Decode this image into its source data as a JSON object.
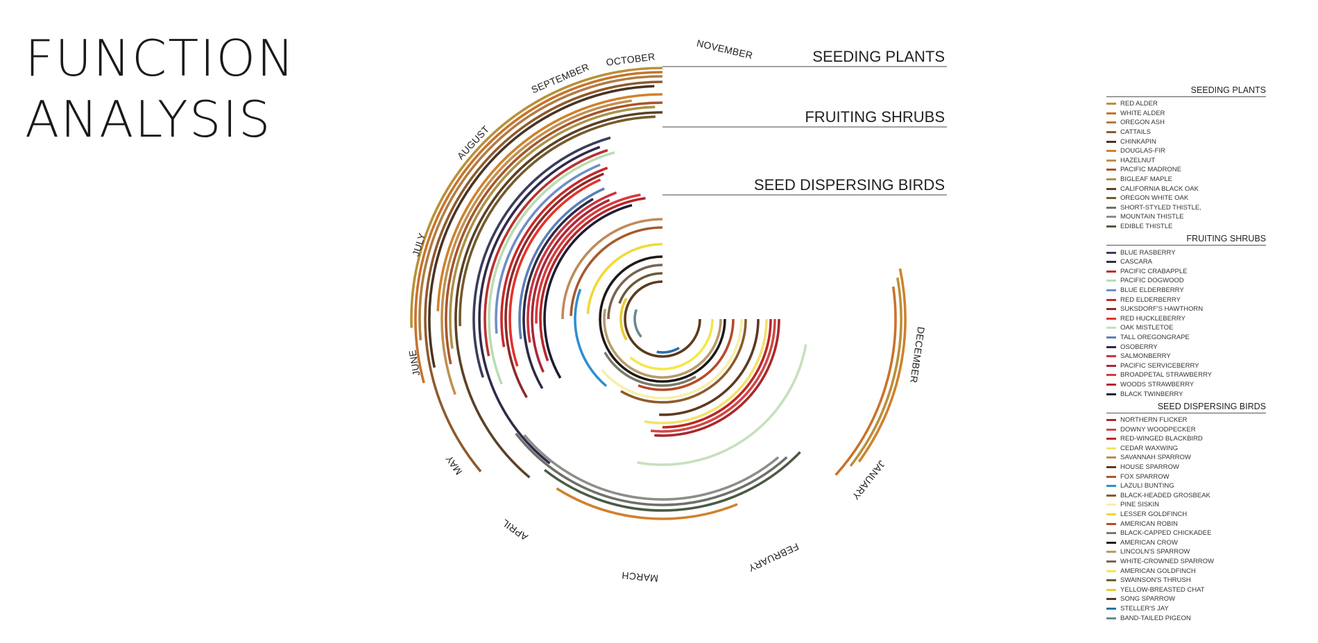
{
  "title": {
    "line1": "FUNCTION",
    "line2": "ANALYSIS"
  },
  "months": [
    "DECEMBER",
    "JANUARY",
    "FEBRUARY",
    "MARCH",
    "APRIL",
    "MAY",
    "JUNE",
    "JULY",
    "AUGUST",
    "SEPTEMBER",
    "OCTOBER",
    "NOVEMBER"
  ],
  "group_headings": [
    "SEEDING PLANTS",
    "FRUITING SHRUBS",
    "SEED DISPERSING BIRDS"
  ],
  "legend": [
    {
      "title": "SEEDING PLANTS",
      "items": [
        {
          "label": "RED ALDER",
          "color": "#b8913a"
        },
        {
          "label": "WHITE ALDER",
          "color": "#c9732b"
        },
        {
          "label": "OREGON ASH",
          "color": "#b07d43"
        },
        {
          "label": "CATTAILS",
          "color": "#8f5a2d"
        },
        {
          "label": "CHINKAPIN",
          "color": "#4a3423"
        },
        {
          "label": "DOUGLAS-FIR",
          "color": "#d0812c"
        },
        {
          "label": "HAZELNUT",
          "color": "#c09050"
        },
        {
          "label": "PACIFIC MADRONE",
          "color": "#a7562c"
        },
        {
          "label": "BIGLEAF MAPLE",
          "color": "#a89347"
        },
        {
          "label": "CALIFORNIA BLACK OAK",
          "color": "#5c4126"
        },
        {
          "label": "OREGON WHITE OAK",
          "color": "#735a2c"
        },
        {
          "label": "SHORT-STYLED THISTLE,",
          "color": "#6e7069"
        },
        {
          "label": "MOUNTAIN THISTLE",
          "color": "#8a8f87"
        },
        {
          "label": "EDIBLE THISTLE",
          "color": "#4b5a44"
        }
      ]
    },
    {
      "title": "FRUITING SHRUBS",
      "items": [
        {
          "label": "BLUE RASBERRY",
          "color": "#3a3d5c"
        },
        {
          "label": "CASCARA",
          "color": "#302a4c"
        },
        {
          "label": "PACIFIC CRABAPPLE",
          "color": "#b8322f"
        },
        {
          "label": "PACIFIC DOGWOOD",
          "color": "#b9dcb3"
        },
        {
          "label": "BLUE ELDERBERRY",
          "color": "#6f8fc6"
        },
        {
          "label": "RED ELDERBERRY",
          "color": "#c52a2a"
        },
        {
          "label": "SUKSDORF'S HAWTHORN",
          "color": "#8e2a2a"
        },
        {
          "label": "RED HUCKLEBERRY",
          "color": "#e2332b"
        },
        {
          "label": "OAK MISTLETOE",
          "color": "#c6e0bd"
        },
        {
          "label": "TALL OREGONGRAPE",
          "color": "#5d7fb9"
        },
        {
          "label": "OSOBERRY",
          "color": "#2d2a45"
        },
        {
          "label": "SALMONBERRY",
          "color": "#c9353d"
        },
        {
          "label": "PACIFIC SERVICEBERRY",
          "color": "#a8293a"
        },
        {
          "label": "BROADPETAL STRAWBERRY",
          "color": "#d83a3a"
        },
        {
          "label": "WOODS STRAWBERRY",
          "color": "#b5262c"
        },
        {
          "label": "BLACK  TWINBERRY",
          "color": "#1f1d33"
        }
      ]
    },
    {
      "title": "SEED DISPERSING BIRDS",
      "items": [
        {
          "label": "NORTHERN FLICKER",
          "color": "#a82a2a"
        },
        {
          "label": "DOWNY WOODPECKER",
          "color": "#d04848"
        },
        {
          "label": "RED-WINGED BLACKBIRD",
          "color": "#c02626"
        },
        {
          "label": "CEDAR WAXWING",
          "color": "#f2e26a"
        },
        {
          "label": "SAVANNAH SPARROW",
          "color": "#c08a5a"
        },
        {
          "label": "HOUSE SPARROW",
          "color": "#5e3a20"
        },
        {
          "label": "FOX SPARROW",
          "color": "#a65a2c"
        },
        {
          "label": "LAZULI BUNTING",
          "color": "#2e8fd0"
        },
        {
          "label": "BLACK-HEADED GROSBEAK",
          "color": "#8c5a2c"
        },
        {
          "label": "PINE SISKIN",
          "color": "#f6f0a8"
        },
        {
          "label": "LESSER GOLDFINCH",
          "color": "#f0d936"
        },
        {
          "label": "AMERICAN ROBIN",
          "color": "#b84a2a"
        },
        {
          "label": "BLACK-CAPPED CHICKADEE",
          "color": "#7b7a6a"
        },
        {
          "label": "AMERICAN CROW",
          "color": "#1d1a16"
        },
        {
          "label": "LINCOLN'S SPARROW",
          "color": "#b89a6a"
        },
        {
          "label": "WHITE-CROWNED SPARROW",
          "color": "#7a6450"
        },
        {
          "label": "AMERICAN GOLDFINCH",
          "color": "#f3e84a"
        },
        {
          "label": "SWAINSON'S THRUSH",
          "color": "#6a5a3a"
        },
        {
          "label": "YELLOW-BREASTED CHAT",
          "color": "#e9cf2a"
        },
        {
          "label": "SONG SPARROW",
          "color": "#5a3a1e"
        },
        {
          "label": "STELLER'S JAY",
          "color": "#2f6fa8"
        },
        {
          "label": "BAND-TAILED PIGEON",
          "color": "#6a8a8c"
        }
      ]
    }
  ]
}
